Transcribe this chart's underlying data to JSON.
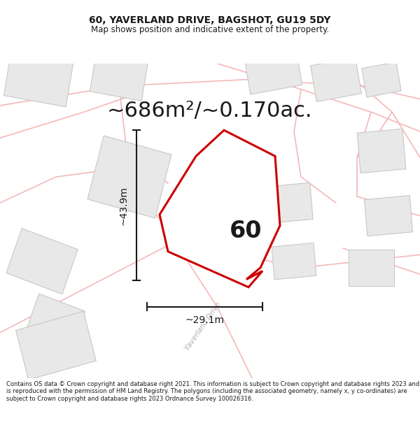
{
  "title": "60, YAVERLAND DRIVE, BAGSHOT, GU19 5DY",
  "subtitle": "Map shows position and indicative extent of the property.",
  "area_text": "~686m²/~0.170ac.",
  "width_label": "~29.1m",
  "height_label": "~43.9m",
  "property_number": "60",
  "bg_color": "#ffffff",
  "map_bg": "#ffffff",
  "plot_color": "#cc0000",
  "road_color": "#f5b8b8",
  "building_edge": "#c8c8c8",
  "building_fill": "#e8e8e8",
  "footer_text": "Contains OS data © Crown copyright and database right 2021. This information is subject to Crown copyright and database rights 2023 and is reproduced with the permission of HM Land Registry. The polygons (including the associated geometry, namely x, y co-ordinates) are subject to Crown copyright and database rights 2023 Ordnance Survey 100026316.",
  "dim_line_color": "#1a1a1a",
  "road_label": "Yaverland Drive",
  "title_fontsize": 10,
  "subtitle_fontsize": 8.5,
  "area_fontsize": 22,
  "label_fontsize": 10,
  "number_fontsize": 24
}
